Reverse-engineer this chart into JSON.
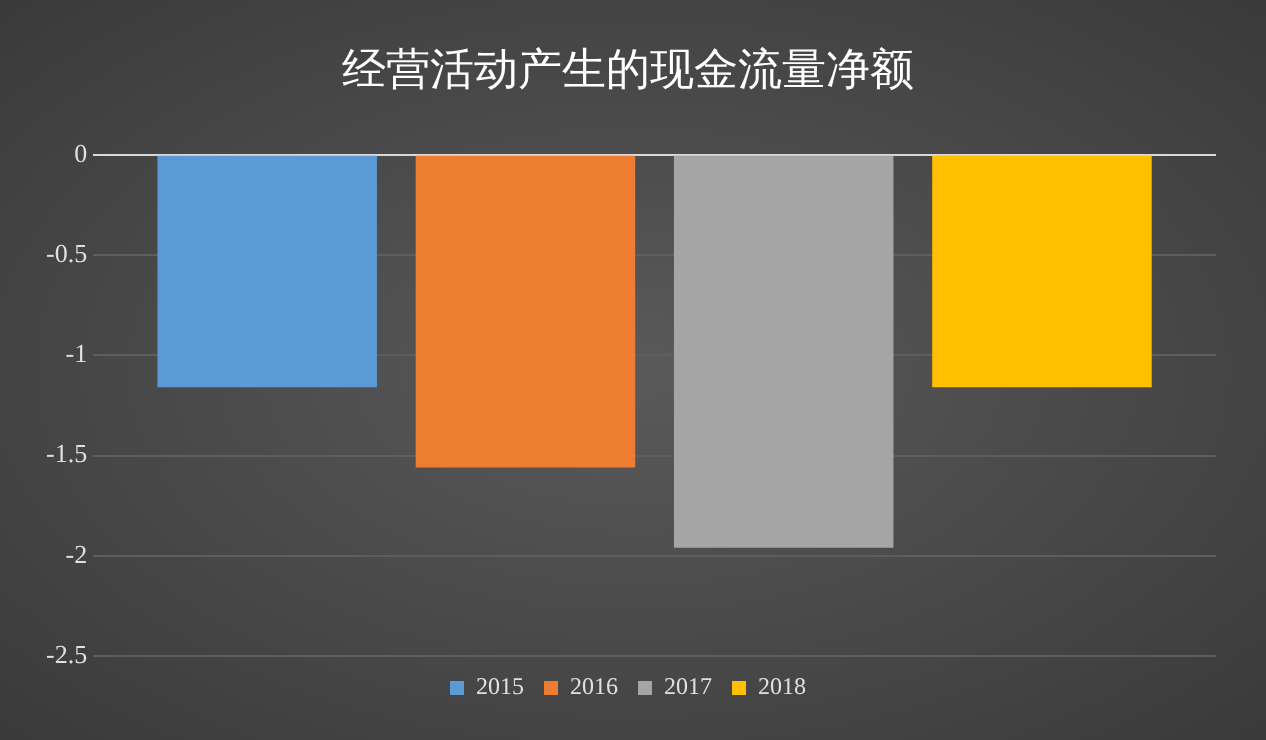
{
  "chart_data": {
    "type": "bar",
    "title": "经营活动产生的现金流量净额",
    "categories": [
      null
    ],
    "series": [
      {
        "name": "2015",
        "color": "#5b9bd5",
        "values": [
          -1.16
        ]
      },
      {
        "name": "2016",
        "color": "#ed7d31",
        "values": [
          -1.56
        ]
      },
      {
        "name": "2017",
        "color": "#a5a5a5",
        "values": [
          -1.96
        ]
      },
      {
        "name": "2018",
        "color": "#ffc000",
        "values": [
          -1.16
        ]
      }
    ],
    "ylim": [
      -2.5,
      0
    ],
    "yticks": [
      0,
      -0.5,
      -1,
      -1.5,
      -2,
      -2.5
    ],
    "grid": "y",
    "legend": "bottom",
    "tick_labels": "y"
  }
}
